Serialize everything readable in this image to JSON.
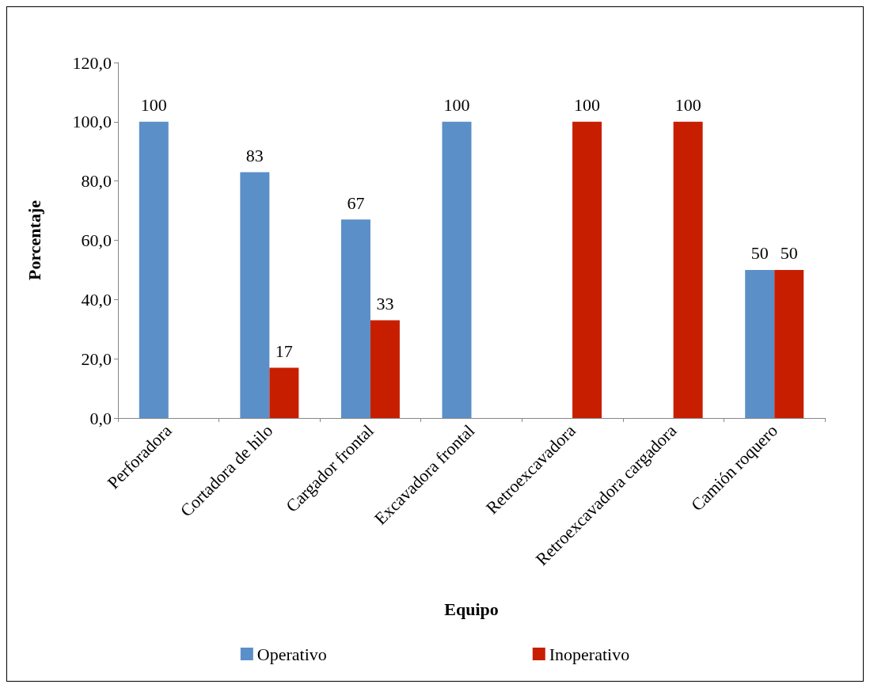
{
  "chart_data": {
    "type": "bar",
    "xlabel": "Equipo",
    "ylabel": "Porcentaje",
    "categories": [
      "Perforadora",
      "Cortadora de hilo",
      "Cargador frontal",
      "Excavadora frontal",
      "Retroexcavadora",
      "Retroexcavadora cargadora",
      "Camión roquero"
    ],
    "series": [
      {
        "name": "Operativo",
        "color": "#5b8fc7",
        "values": [
          100,
          83,
          67,
          100,
          null,
          null,
          50
        ]
      },
      {
        "name": "Inoperativo",
        "color": "#c81e00",
        "values": [
          null,
          17,
          33,
          null,
          100,
          100,
          50
        ]
      }
    ],
    "ylim": [
      0,
      120
    ],
    "yticks": [
      {
        "value": 0,
        "label": "0,0"
      },
      {
        "value": 20,
        "label": "20,0"
      },
      {
        "value": 40,
        "label": "40,0"
      },
      {
        "value": 60,
        "label": "60,0"
      },
      {
        "value": 80,
        "label": "80,0"
      },
      {
        "value": 100,
        "label": "100,0"
      },
      {
        "value": 120,
        "label": "120,0"
      }
    ],
    "data_labels": true,
    "grid": false,
    "legend": "bottom"
  }
}
